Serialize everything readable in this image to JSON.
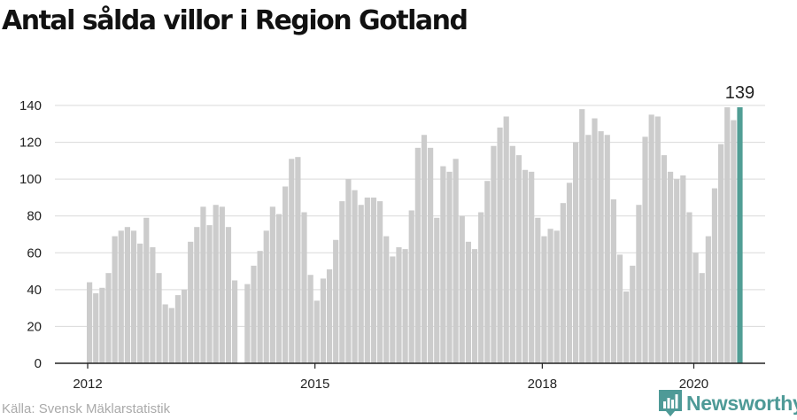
{
  "title": "Antal sålda villor i Region Gotland",
  "source": "Källa: Svensk Mäklarstatistik",
  "brand": {
    "name": "Newsworthy",
    "icon": "bar-chart-logo-icon",
    "color": "#4e9a97"
  },
  "colors": {
    "bar": "#cccccc",
    "highlight": "#519e95",
    "grid": "#d9d9d9",
    "axis": "#222222",
    "text": "#222222"
  },
  "chart_data": {
    "type": "bar",
    "title": "Antal sålda villor i Region Gotland",
    "xlabel": "",
    "ylabel": "",
    "start": "2012-01",
    "frequency": "monthly",
    "values": [
      44,
      38,
      41,
      49,
      69,
      72,
      74,
      72,
      65,
      79,
      63,
      49,
      32,
      30,
      37,
      40,
      66,
      74,
      85,
      75,
      86,
      85,
      74,
      45,
      0,
      43,
      53,
      61,
      72,
      85,
      81,
      96,
      111,
      112,
      82,
      48,
      34,
      46,
      51,
      67,
      88,
      100,
      94,
      86,
      90,
      90,
      88,
      69,
      58,
      63,
      62,
      83,
      117,
      124,
      117,
      79,
      107,
      104,
      111,
      80,
      66,
      62,
      82,
      99,
      118,
      128,
      134,
      118,
      113,
      105,
      104,
      79,
      69,
      73,
      72,
      87,
      98,
      120,
      138,
      124,
      133,
      126,
      124,
      89,
      59,
      39,
      53,
      86,
      123,
      135,
      134,
      113,
      104,
      100,
      102,
      82,
      60,
      49,
      69,
      95,
      119,
      139,
      132,
      139
    ],
    "highlight": {
      "index": 103,
      "value": 139,
      "label": "139"
    },
    "x_ticks": [
      "2012",
      "2015",
      "2018",
      "2020"
    ],
    "y_ticks": [
      "0",
      "20",
      "40",
      "60",
      "80",
      "100",
      "120",
      "140"
    ],
    "ylim": [
      0,
      150
    ],
    "grid": true
  }
}
